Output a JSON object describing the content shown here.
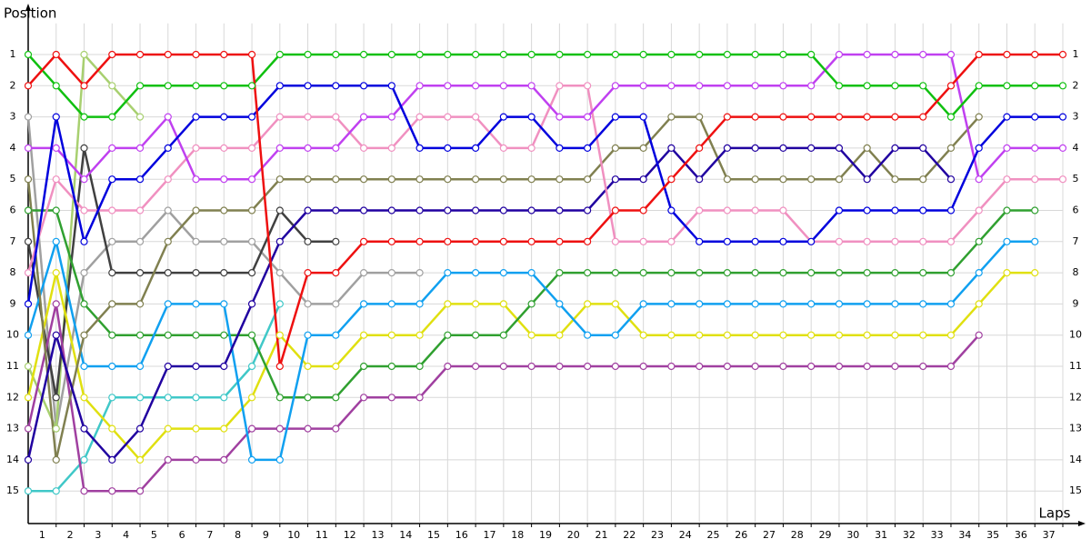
{
  "chart_data": {
    "type": "line",
    "x_label": "Laps",
    "y_label": "Position",
    "x": [
      0,
      1,
      2,
      3,
      4,
      5,
      6,
      7,
      8,
      9,
      10,
      11,
      12,
      13,
      14,
      15,
      16,
      17,
      18,
      19,
      20,
      21,
      22,
      23,
      24,
      25,
      26,
      27,
      28,
      29,
      30,
      31,
      32,
      33,
      34,
      35,
      36,
      37
    ],
    "xlim": [
      0,
      37
    ],
    "xticks": [
      1,
      2,
      3,
      4,
      5,
      6,
      7,
      8,
      9,
      10,
      11,
      12,
      13,
      14,
      15,
      16,
      17,
      18,
      19,
      20,
      21,
      22,
      23,
      24,
      25,
      26,
      27,
      28,
      29,
      30,
      31,
      32,
      33,
      34,
      35,
      36,
      37
    ],
    "ylim": [
      0,
      16
    ],
    "y_inverted": true,
    "yticks": [
      1,
      2,
      3,
      4,
      5,
      6,
      7,
      8,
      9,
      10,
      11,
      12,
      13,
      14,
      15
    ],
    "grid": true,
    "series": [
      {
        "color": "#a0a0a0",
        "values": [
          3,
          13,
          8,
          7,
          7,
          6,
          7,
          7,
          7,
          8,
          9,
          9,
          8,
          8,
          8,
          null,
          null,
          null,
          null,
          null,
          null,
          null,
          null,
          null,
          null,
          null,
          null,
          null,
          null,
          null,
          null,
          null,
          null,
          null,
          null,
          null,
          null,
          null
        ]
      },
      {
        "color": "#a8d070",
        "values": [
          11,
          13,
          1,
          2,
          3,
          null,
          null,
          null,
          null,
          null,
          null,
          null,
          null,
          null,
          null,
          null,
          null,
          null,
          null,
          null,
          null,
          null,
          null,
          null,
          null,
          null,
          null,
          null,
          null,
          null,
          null,
          null,
          null,
          null,
          null,
          null,
          null,
          null
        ]
      },
      {
        "color": "#40c8c8",
        "values": [
          15,
          15,
          14,
          12,
          12,
          12,
          12,
          12,
          11,
          9,
          null,
          null,
          null,
          null,
          null,
          null,
          null,
          null,
          null,
          null,
          null,
          null,
          null,
          null,
          null,
          null,
          null,
          null,
          null,
          null,
          null,
          null,
          null,
          null,
          null,
          null,
          null,
          null
        ]
      },
      {
        "color": "#404040",
        "values": [
          7,
          12,
          4,
          8,
          8,
          8,
          8,
          8,
          8,
          6,
          7,
          7,
          null,
          null,
          null,
          null,
          null,
          null,
          null,
          null,
          null,
          null,
          null,
          null,
          null,
          null,
          null,
          null,
          null,
          null,
          null,
          null,
          null,
          null,
          null,
          null,
          null,
          null
        ]
      },
      {
        "color": "#a040a0",
        "values": [
          13,
          9,
          15,
          15,
          15,
          14,
          14,
          14,
          13,
          13,
          13,
          13,
          12,
          12,
          12,
          11,
          11,
          11,
          11,
          11,
          11,
          11,
          11,
          11,
          11,
          11,
          11,
          11,
          11,
          11,
          11,
          11,
          11,
          11,
          10,
          null,
          null,
          null
        ]
      },
      {
        "color": "#e0e010",
        "values": [
          12,
          8,
          12,
          13,
          14,
          13,
          13,
          13,
          12,
          10,
          11,
          11,
          10,
          10,
          10,
          9,
          9,
          9,
          10,
          10,
          9,
          9,
          10,
          10,
          10,
          10,
          10,
          10,
          10,
          10,
          10,
          10,
          10,
          10,
          9,
          8,
          8,
          null
        ]
      },
      {
        "color": "#30a030",
        "values": [
          6,
          6,
          9,
          10,
          10,
          10,
          10,
          10,
          10,
          12,
          12,
          12,
          11,
          11,
          11,
          10,
          10,
          10,
          9,
          8,
          8,
          8,
          8,
          8,
          8,
          8,
          8,
          8,
          8,
          8,
          8,
          8,
          8,
          8,
          7,
          6,
          6,
          null
        ]
      },
      {
        "color": "#10a0f0",
        "values": [
          10,
          7,
          11,
          11,
          11,
          9,
          9,
          9,
          14,
          14,
          10,
          10,
          9,
          9,
          9,
          8,
          8,
          8,
          8,
          9,
          10,
          10,
          9,
          9,
          9,
          9,
          9,
          9,
          9,
          9,
          9,
          9,
          9,
          9,
          8,
          7,
          7,
          null
        ]
      },
      {
        "color": "#808050",
        "values": [
          5,
          14,
          10,
          9,
          9,
          7,
          6,
          6,
          6,
          5,
          5,
          5,
          5,
          5,
          5,
          5,
          5,
          5,
          5,
          5,
          5,
          4,
          4,
          3,
          3,
          5,
          5,
          5,
          5,
          5,
          4,
          5,
          5,
          4,
          3,
          null,
          null,
          null
        ]
      },
      {
        "color": "#2000a0",
        "values": [
          14,
          10,
          13,
          14,
          13,
          11,
          11,
          11,
          9,
          7,
          6,
          6,
          6,
          6,
          6,
          6,
          6,
          6,
          6,
          6,
          6,
          5,
          5,
          4,
          5,
          4,
          4,
          4,
          4,
          4,
          5,
          4,
          4,
          5,
          null,
          null,
          null,
          null
        ]
      },
      {
        "color": "#f090c0",
        "values": [
          8,
          5,
          6,
          6,
          6,
          5,
          4,
          4,
          4,
          3,
          3,
          3,
          4,
          4,
          3,
          3,
          3,
          4,
          4,
          2,
          2,
          7,
          7,
          7,
          6,
          6,
          6,
          6,
          7,
          7,
          7,
          7,
          7,
          7,
          6,
          5,
          5,
          5
        ]
      },
      {
        "color": "#c040f0",
        "values": [
          4,
          4,
          5,
          4,
          4,
          3,
          5,
          5,
          5,
          4,
          4,
          4,
          3,
          3,
          2,
          2,
          2,
          2,
          2,
          3,
          3,
          2,
          2,
          2,
          2,
          2,
          2,
          2,
          2,
          1,
          1,
          1,
          1,
          1,
          5,
          4,
          4,
          4
        ]
      },
      {
        "color": "#0000dd",
        "values": [
          9,
          3,
          7,
          5,
          5,
          4,
          3,
          3,
          3,
          2,
          2,
          2,
          2,
          2,
          4,
          4,
          4,
          3,
          3,
          4,
          4,
          3,
          3,
          6,
          7,
          7,
          7,
          7,
          7,
          6,
          6,
          6,
          6,
          6,
          4,
          3,
          3,
          3
        ]
      },
      {
        "color": "#10c010",
        "values": [
          1,
          2,
          3,
          3,
          2,
          2,
          2,
          2,
          2,
          1,
          1,
          1,
          1,
          1,
          1,
          1,
          1,
          1,
          1,
          1,
          1,
          1,
          1,
          1,
          1,
          1,
          1,
          1,
          1,
          2,
          2,
          2,
          2,
          3,
          2,
          2,
          2,
          2
        ]
      },
      {
        "color": "#ee1010",
        "values": [
          2,
          1,
          2,
          1,
          1,
          1,
          1,
          1,
          1,
          11,
          8,
          8,
          7,
          7,
          7,
          7,
          7,
          7,
          7,
          7,
          7,
          6,
          6,
          5,
          4,
          3,
          3,
          3,
          3,
          3,
          3,
          3,
          3,
          2,
          1,
          1,
          1,
          1
        ]
      }
    ]
  }
}
